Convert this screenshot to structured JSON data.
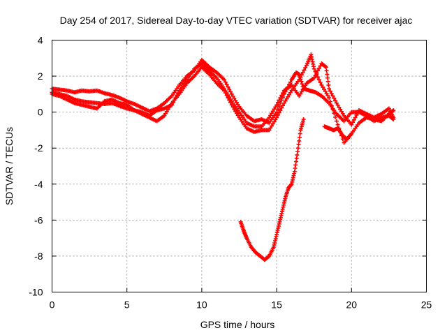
{
  "chart_data": {
    "type": "scatter",
    "title": "Day 254 of 2017, Sidereal Day-to-day VTEC variation (SDTVAR) for receiver ajac",
    "xlabel": "GPS time / hours",
    "ylabel": "SDTVAR / TECUs",
    "xlim": [
      0,
      25
    ],
    "ylim": [
      -10,
      4
    ],
    "x_ticks": [
      0,
      5,
      10,
      15,
      20,
      25
    ],
    "y_ticks": [
      -10,
      -8,
      -6,
      -4,
      -2,
      0,
      2,
      4
    ],
    "x_tick_labels": [
      "0",
      "5",
      "10",
      "15",
      "20",
      "25"
    ],
    "y_tick_labels": [
      "-10",
      "-8",
      "-6",
      "-4",
      "-2",
      "0",
      "2",
      "4"
    ],
    "grid": true,
    "marker": "plus",
    "series": [
      {
        "name": "track-a",
        "color": "#ff0000",
        "points": [
          [
            0.0,
            1.3
          ],
          [
            0.5,
            1.25
          ],
          [
            1.0,
            1.2
          ],
          [
            1.5,
            1.1
          ],
          [
            2.0,
            1.2
          ],
          [
            2.5,
            1.15
          ],
          [
            3.0,
            1.2
          ],
          [
            3.5,
            1.05
          ],
          [
            4.0,
            0.95
          ],
          [
            4.5,
            0.8
          ],
          [
            5.0,
            0.6
          ],
          [
            5.5,
            0.45
          ],
          [
            6.0,
            0.25
          ],
          [
            6.5,
            0.05
          ],
          [
            7.0,
            0.2
          ],
          [
            7.5,
            0.5
          ],
          [
            8.0,
            0.9
          ],
          [
            8.5,
            1.5
          ],
          [
            9.0,
            2.0
          ],
          [
            9.5,
            2.3
          ],
          [
            10.0,
            2.9
          ],
          [
            10.5,
            2.5
          ],
          [
            11.0,
            2.2
          ],
          [
            11.5,
            1.8
          ],
          [
            12.0,
            1.0
          ],
          [
            12.5,
            0.3
          ],
          [
            13.0,
            -0.2
          ],
          [
            13.5,
            -0.5
          ],
          [
            14.0,
            -0.4
          ],
          [
            14.5,
            -0.6
          ],
          [
            15.0,
            0.0
          ],
          [
            15.5,
            1.0
          ],
          [
            16.0,
            1.8
          ],
          [
            16.3,
            2.2
          ],
          [
            16.5,
            2.1
          ],
          [
            16.8,
            1.3
          ],
          [
            17.2,
            1.2
          ],
          [
            17.6,
            1.1
          ],
          [
            18.0,
            0.9
          ],
          [
            18.5,
            0.5
          ],
          [
            19.0,
            -0.1
          ],
          [
            19.5,
            -0.5
          ],
          [
            20.0,
            0.0
          ],
          [
            20.5,
            0.0
          ],
          [
            21.0,
            -0.2
          ],
          [
            21.5,
            -0.5
          ],
          [
            22.0,
            -0.3
          ],
          [
            22.5,
            -0.2
          ],
          [
            22.8,
            -0.4
          ]
        ]
      },
      {
        "name": "track-b",
        "color": "#ff0000",
        "points": [
          [
            0.0,
            1.1
          ],
          [
            0.5,
            1.0
          ],
          [
            1.0,
            0.9
          ],
          [
            1.5,
            0.7
          ],
          [
            2.0,
            0.6
          ],
          [
            2.5,
            0.55
          ],
          [
            3.0,
            0.5
          ],
          [
            3.5,
            0.45
          ],
          [
            4.0,
            0.5
          ],
          [
            4.5,
            0.35
          ],
          [
            5.0,
            0.2
          ],
          [
            5.5,
            0.1
          ],
          [
            6.0,
            -0.1
          ],
          [
            6.5,
            -0.3
          ],
          [
            7.0,
            -0.5
          ],
          [
            7.5,
            -0.2
          ],
          [
            8.0,
            0.5
          ],
          [
            8.5,
            1.0
          ],
          [
            9.0,
            1.6
          ],
          [
            9.5,
            2.0
          ],
          [
            10.0,
            2.5
          ],
          [
            10.5,
            2.1
          ],
          [
            11.0,
            1.6
          ],
          [
            11.5,
            1.2
          ],
          [
            12.0,
            0.4
          ],
          [
            12.5,
            -0.3
          ],
          [
            13.0,
            -0.9
          ],
          [
            13.5,
            -1.1
          ],
          [
            14.0,
            -1.0
          ],
          [
            14.5,
            -1.0
          ],
          [
            15.0,
            -0.3
          ],
          [
            15.5,
            0.5
          ],
          [
            16.0,
            1.2
          ],
          [
            16.5,
            1.8
          ],
          [
            17.0,
            2.6
          ],
          [
            17.3,
            3.2
          ],
          [
            17.5,
            2.4
          ],
          [
            18.0,
            1.5
          ],
          [
            18.5,
            0.8
          ],
          [
            19.0,
            -0.5
          ],
          [
            19.5,
            -1.7
          ],
          [
            20.0,
            -1.2
          ],
          [
            20.5,
            -0.6
          ],
          [
            21.0,
            -0.3
          ],
          [
            21.5,
            -0.4
          ],
          [
            22.0,
            -0.5
          ],
          [
            22.5,
            -0.1
          ],
          [
            22.8,
            0.1
          ]
        ]
      },
      {
        "name": "track-c",
        "color": "#ff0000",
        "points": [
          [
            0.0,
            1.0
          ],
          [
            0.5,
            0.9
          ],
          [
            1.0,
            0.7
          ],
          [
            1.5,
            0.5
          ],
          [
            2.0,
            0.4
          ],
          [
            2.5,
            0.3
          ],
          [
            3.0,
            0.2
          ],
          [
            3.5,
            0.6
          ],
          [
            4.0,
            0.7
          ],
          [
            4.5,
            0.5
          ],
          [
            5.0,
            0.4
          ],
          [
            5.5,
            0.1
          ],
          [
            6.0,
            0.0
          ],
          [
            6.5,
            -0.2
          ],
          [
            7.0,
            0.1
          ],
          [
            7.5,
            0.2
          ],
          [
            8.0,
            0.4
          ],
          [
            8.5,
            1.2
          ],
          [
            9.0,
            1.8
          ],
          [
            9.5,
            2.4
          ],
          [
            10.0,
            2.7
          ],
          [
            10.5,
            2.3
          ],
          [
            11.0,
            1.9
          ],
          [
            11.5,
            1.3
          ],
          [
            12.0,
            0.6
          ],
          [
            12.5,
            0.0
          ],
          [
            13.0,
            -0.6
          ],
          [
            13.5,
            -0.8
          ],
          [
            14.0,
            -0.8
          ],
          [
            14.5,
            -0.3
          ],
          [
            15.0,
            0.4
          ],
          [
            15.5,
            1.2
          ],
          [
            16.0,
            1.5
          ],
          [
            16.5,
            0.9
          ],
          [
            17.0,
            1.6
          ],
          [
            17.5,
            1.9
          ],
          [
            18.0,
            2.7
          ],
          [
            18.3,
            2.5
          ],
          [
            18.5,
            1.3
          ],
          [
            19.0,
            0.5
          ],
          [
            19.5,
            -0.2
          ],
          [
            20.0,
            -0.7
          ],
          [
            20.5,
            0.1
          ],
          [
            21.0,
            -0.1
          ],
          [
            21.5,
            -0.3
          ],
          [
            22.0,
            -0.1
          ],
          [
            22.5,
            0.2
          ],
          [
            22.8,
            -0.3
          ]
        ]
      },
      {
        "name": "track-d",
        "color": "#ff0000",
        "points": [
          [
            12.6,
            -6.1
          ],
          [
            12.8,
            -6.6
          ],
          [
            13.0,
            -7.0
          ],
          [
            13.3,
            -7.5
          ],
          [
            13.6,
            -7.8
          ],
          [
            13.9,
            -8.0
          ],
          [
            14.2,
            -8.2
          ],
          [
            14.5,
            -8.0
          ],
          [
            14.8,
            -7.5
          ],
          [
            15.0,
            -6.8
          ],
          [
            15.2,
            -6.1
          ],
          [
            15.4,
            -5.4
          ],
          [
            15.6,
            -4.7
          ],
          [
            15.8,
            -4.2
          ],
          [
            16.0,
            -4.0
          ],
          [
            16.2,
            -3.3
          ],
          [
            16.4,
            -2.2
          ],
          [
            16.6,
            -1.0
          ],
          [
            16.8,
            -0.4
          ]
        ]
      },
      {
        "name": "track-e",
        "color": "#ff0000",
        "points": [
          [
            18.2,
            -0.8
          ],
          [
            18.5,
            -0.9
          ],
          [
            18.8,
            -1.0
          ],
          [
            19.1,
            -0.9
          ],
          [
            19.4,
            -1.3
          ],
          [
            19.7,
            -1.5
          ],
          [
            20.0,
            -1.2
          ]
        ]
      }
    ]
  }
}
